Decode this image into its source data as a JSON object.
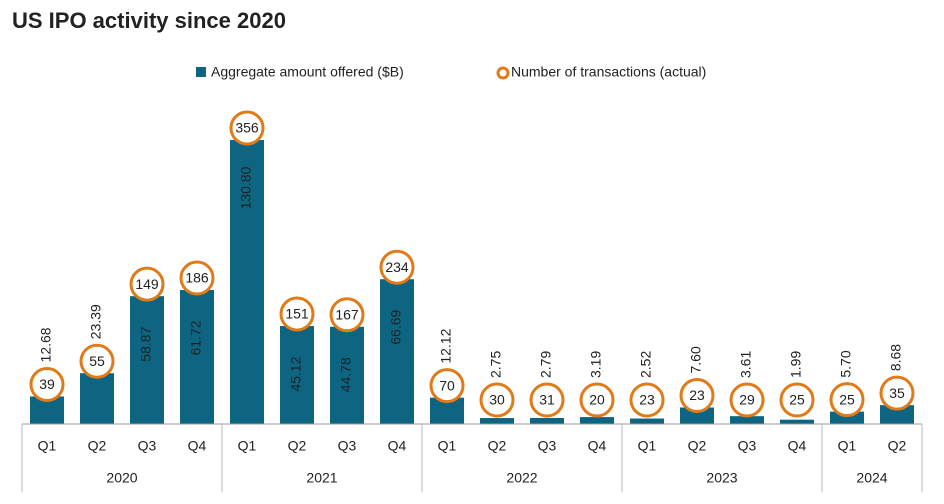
{
  "chart_data": {
    "type": "bar",
    "title": "US IPO activity since 2020",
    "year_groups": [
      {
        "label": "2020",
        "categories": [
          "Q1",
          "Q2",
          "Q3",
          "Q4"
        ]
      },
      {
        "label": "2021",
        "categories": [
          "Q1",
          "Q2",
          "Q3",
          "Q4"
        ]
      },
      {
        "label": "2022",
        "categories": [
          "Q1",
          "Q2",
          "Q3",
          "Q4"
        ]
      },
      {
        "label": "2023",
        "categories": [
          "Q1",
          "Q2",
          "Q3",
          "Q4"
        ]
      },
      {
        "label": "2024",
        "categories": [
          "Q1",
          "Q2"
        ]
      }
    ],
    "series": [
      {
        "name": "Aggregate amount offered ($B)",
        "color": "#0d6582",
        "values": [
          12.68,
          23.39,
          58.87,
          61.72,
          130.8,
          45.12,
          44.78,
          66.69,
          12.12,
          2.75,
          2.79,
          3.19,
          2.52,
          7.6,
          3.61,
          1.99,
          5.7,
          8.68
        ],
        "value_labels": [
          "12.68",
          "23.39",
          "58.87",
          "61.72",
          "130.80",
          "45.12",
          "44.78",
          "66.69",
          "12.12",
          "2.75",
          "2.79",
          "3.19",
          "2.52",
          "7.60",
          "3.61",
          "1.99",
          "5.70",
          "8.68"
        ]
      },
      {
        "name": "Number of transactions (actual)",
        "color": "#e07b1a",
        "values": [
          39,
          55,
          149,
          186,
          356,
          151,
          167,
          234,
          70,
          30,
          31,
          20,
          23,
          23,
          29,
          25,
          25,
          35
        ]
      }
    ]
  }
}
